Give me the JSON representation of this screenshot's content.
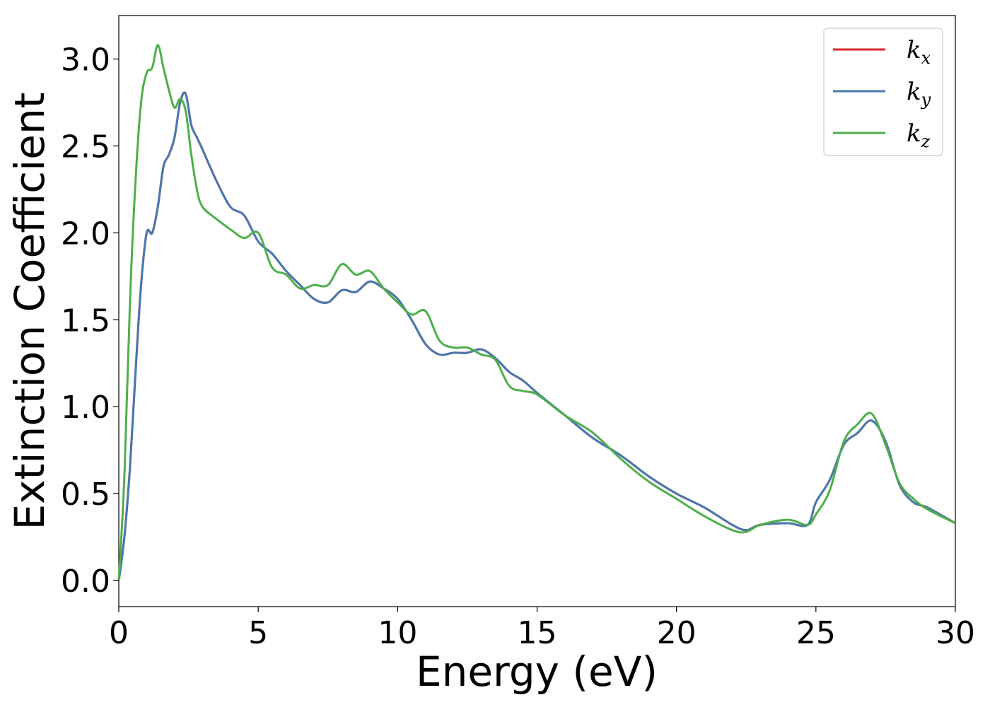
{
  "chart_data": {
    "type": "line",
    "xlabel": "Energy (eV)",
    "ylabel": "Extinction Coefficient",
    "xlim": [
      0,
      30
    ],
    "ylim": [
      -0.15,
      3.25
    ],
    "xticks": [
      0,
      5,
      10,
      15,
      20,
      25,
      30
    ],
    "xtick_labels": [
      "0",
      "5",
      "10",
      "15",
      "20",
      "25",
      "30"
    ],
    "yticks": [
      0.0,
      0.5,
      1.0,
      1.5,
      2.0,
      2.5,
      3.0
    ],
    "ytick_labels": [
      "0.0",
      "0.5",
      "1.0",
      "1.5",
      "2.0",
      "2.5",
      "3.0"
    ],
    "grid": false,
    "legend_position": "top-right",
    "series": [
      {
        "name": "k_x",
        "label_main": "k",
        "label_sub": "x",
        "color": "#d62728",
        "x": [
          0,
          0.2,
          0.4,
          0.6,
          0.8,
          1.0,
          1.2,
          1.4,
          1.6,
          1.8,
          2.0,
          2.2,
          2.4,
          2.6,
          2.8,
          3.0,
          3.5,
          4.0,
          4.5,
          5.0,
          5.5,
          6.0,
          6.5,
          7.0,
          7.5,
          8.0,
          8.5,
          9.0,
          9.5,
          10.0,
          10.5,
          11.0,
          11.5,
          12.0,
          12.5,
          13.0,
          13.5,
          14.0,
          14.5,
          15.0,
          16.0,
          17.0,
          18.0,
          19.0,
          20.0,
          21.0,
          22.0,
          22.5,
          23.0,
          24.0,
          24.7,
          25.0,
          25.5,
          26.0,
          26.5,
          27.0,
          27.5,
          28.0,
          28.5,
          29.0,
          30.0
        ],
        "y": [
          0.0,
          0.25,
          0.65,
          1.2,
          1.7,
          2.0,
          2.0,
          2.15,
          2.38,
          2.45,
          2.55,
          2.75,
          2.8,
          2.62,
          2.55,
          2.48,
          2.3,
          2.15,
          2.1,
          1.95,
          1.88,
          1.78,
          1.7,
          1.62,
          1.6,
          1.67,
          1.66,
          1.72,
          1.68,
          1.62,
          1.5,
          1.36,
          1.3,
          1.31,
          1.31,
          1.33,
          1.28,
          1.2,
          1.15,
          1.08,
          0.95,
          0.82,
          0.72,
          0.6,
          0.5,
          0.42,
          0.32,
          0.29,
          0.32,
          0.33,
          0.32,
          0.45,
          0.58,
          0.78,
          0.85,
          0.92,
          0.8,
          0.55,
          0.45,
          0.42,
          0.33
        ]
      },
      {
        "name": "k_y",
        "label_main": "k",
        "label_sub": "y",
        "color": "#4878b0",
        "x": [
          0,
          0.2,
          0.4,
          0.6,
          0.8,
          1.0,
          1.2,
          1.4,
          1.6,
          1.8,
          2.0,
          2.2,
          2.4,
          2.6,
          2.8,
          3.0,
          3.5,
          4.0,
          4.5,
          5.0,
          5.5,
          6.0,
          6.5,
          7.0,
          7.5,
          8.0,
          8.5,
          9.0,
          9.5,
          10.0,
          10.5,
          11.0,
          11.5,
          12.0,
          12.5,
          13.0,
          13.5,
          14.0,
          14.5,
          15.0,
          16.0,
          17.0,
          18.0,
          19.0,
          20.0,
          21.0,
          22.0,
          22.5,
          23.0,
          24.0,
          24.7,
          25.0,
          25.5,
          26.0,
          26.5,
          27.0,
          27.5,
          28.0,
          28.5,
          29.0,
          30.0
        ],
        "y": [
          0.0,
          0.25,
          0.65,
          1.2,
          1.7,
          2.0,
          2.0,
          2.15,
          2.38,
          2.45,
          2.55,
          2.75,
          2.8,
          2.62,
          2.55,
          2.48,
          2.3,
          2.15,
          2.1,
          1.95,
          1.88,
          1.78,
          1.7,
          1.62,
          1.6,
          1.67,
          1.66,
          1.72,
          1.68,
          1.62,
          1.5,
          1.36,
          1.3,
          1.31,
          1.31,
          1.33,
          1.28,
          1.2,
          1.15,
          1.08,
          0.95,
          0.82,
          0.72,
          0.6,
          0.5,
          0.42,
          0.32,
          0.29,
          0.32,
          0.33,
          0.32,
          0.45,
          0.58,
          0.78,
          0.85,
          0.92,
          0.8,
          0.55,
          0.45,
          0.42,
          0.33
        ]
      },
      {
        "name": "k_z",
        "label_main": "k",
        "label_sub": "z",
        "color": "#4daf4a",
        "x": [
          0,
          0.2,
          0.4,
          0.6,
          0.8,
          1.0,
          1.2,
          1.4,
          1.6,
          1.8,
          2.0,
          2.2,
          2.4,
          2.6,
          2.8,
          3.0,
          3.5,
          4.0,
          4.5,
          5.0,
          5.5,
          6.0,
          6.5,
          7.0,
          7.5,
          8.0,
          8.5,
          9.0,
          9.5,
          10.0,
          10.5,
          11.0,
          11.5,
          12.0,
          12.5,
          13.0,
          13.5,
          14.0,
          14.5,
          15.0,
          16.0,
          17.0,
          18.0,
          19.0,
          20.0,
          21.0,
          22.0,
          22.5,
          23.0,
          24.0,
          24.7,
          25.0,
          25.5,
          26.0,
          26.5,
          27.0,
          27.5,
          28.0,
          28.5,
          29.0,
          30.0
        ],
        "y": [
          0.0,
          0.6,
          1.6,
          2.3,
          2.75,
          2.92,
          2.95,
          3.08,
          2.95,
          2.82,
          2.72,
          2.77,
          2.7,
          2.45,
          2.25,
          2.15,
          2.08,
          2.02,
          1.97,
          2.0,
          1.8,
          1.76,
          1.68,
          1.7,
          1.7,
          1.82,
          1.76,
          1.78,
          1.68,
          1.6,
          1.53,
          1.55,
          1.38,
          1.34,
          1.34,
          1.3,
          1.27,
          1.12,
          1.09,
          1.07,
          0.95,
          0.85,
          0.7,
          0.57,
          0.47,
          0.37,
          0.29,
          0.28,
          0.32,
          0.35,
          0.32,
          0.38,
          0.52,
          0.8,
          0.9,
          0.96,
          0.78,
          0.56,
          0.47,
          0.41,
          0.33
        ]
      }
    ]
  }
}
